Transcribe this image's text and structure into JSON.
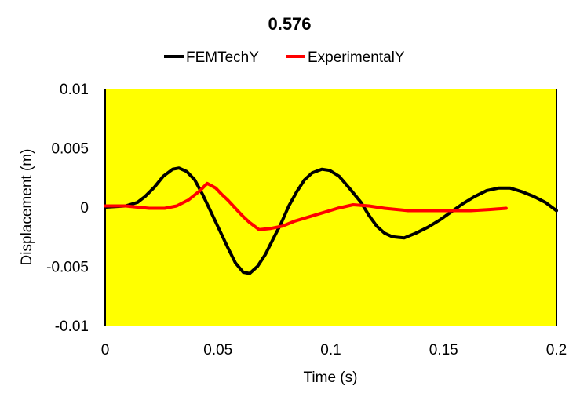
{
  "chart_data": {
    "type": "line",
    "title": "0.576",
    "xlabel": "Time (s)",
    "ylabel": "Displacement (m)",
    "xlim": [
      0,
      0.2
    ],
    "ylim": [
      -0.01,
      0.01
    ],
    "xticks": [
      0,
      0.05,
      0.1,
      0.15,
      0.2
    ],
    "xtick_labels": [
      "0",
      "0.05",
      "0.1",
      "0.15",
      "0.2"
    ],
    "yticks": [
      0.01,
      0.005,
      0,
      -0.005,
      -0.01
    ],
    "ytick_labels": [
      "0.01",
      "0.005",
      "0",
      "-0.005",
      "-0.01"
    ],
    "grid": false,
    "legend_position": "top",
    "plot_background": "#ffff00",
    "series": [
      {
        "name": "FEMTechY",
        "color": "#000000",
        "x": [
          0,
          0.009,
          0.0143,
          0.0177,
          0.0219,
          0.0257,
          0.0299,
          0.0327,
          0.0362,
          0.0397,
          0.0431,
          0.0466,
          0.0501,
          0.0543,
          0.0577,
          0.0612,
          0.064,
          0.0675,
          0.071,
          0.0744,
          0.0779,
          0.0814,
          0.0849,
          0.0883,
          0.0918,
          0.096,
          0.0995,
          0.1037,
          0.1082,
          0.1134,
          0.1169,
          0.1203,
          0.1238,
          0.1273,
          0.1325,
          0.1377,
          0.143,
          0.1482,
          0.1534,
          0.1586,
          0.1638,
          0.1691,
          0.1743,
          0.1795,
          0.1847,
          0.1899,
          0.1951,
          0.2
        ],
        "y": [
          0,
          0.0001,
          0.0004,
          0.0009,
          0.0017,
          0.0026,
          0.0032,
          0.0033,
          0.003,
          0.0023,
          0.0011,
          -0.0003,
          -0.0017,
          -0.0034,
          -0.0047,
          -0.0055,
          -0.0056,
          -0.005,
          -0.004,
          -0.0027,
          -0.0014,
          0.0001,
          0.0013,
          0.0023,
          0.0029,
          0.0032,
          0.0031,
          0.0026,
          0.0016,
          0.0004,
          -0.0007,
          -0.0016,
          -0.0022,
          -0.0025,
          -0.0026,
          -0.0022,
          -0.0017,
          -0.0011,
          -0.0004,
          0.0003,
          0.0009,
          0.0014,
          0.0016,
          0.0016,
          0.0013,
          0.0009,
          0.0004,
          -0.0003
        ]
      },
      {
        "name": "ExperimentalY",
        "color": "#ff0000",
        "x": [
          0,
          0.009,
          0.0195,
          0.0264,
          0.0317,
          0.0369,
          0.0421,
          0.0452,
          0.049,
          0.0515,
          0.0543,
          0.0577,
          0.0612,
          0.064,
          0.0682,
          0.0734,
          0.0786,
          0.0838,
          0.089,
          0.096,
          0.103,
          0.1099,
          0.1169,
          0.1238,
          0.1343,
          0.1482,
          0.162,
          0.1708,
          0.1777
        ],
        "y": [
          0.0001,
          0.0001,
          -0.0001,
          -0.0001,
          0.0001,
          0.0006,
          0.0014,
          0.002,
          0.0016,
          0.0011,
          0.0006,
          -0.0001,
          -0.0008,
          -0.0013,
          -0.0019,
          -0.0018,
          -0.0016,
          -0.0012,
          -0.0009,
          -0.0005,
          -0.0001,
          0.0002,
          0.0001,
          -0.0001,
          -0.0003,
          -0.0003,
          -0.0003,
          -0.0002,
          -0.0001
        ]
      }
    ]
  }
}
